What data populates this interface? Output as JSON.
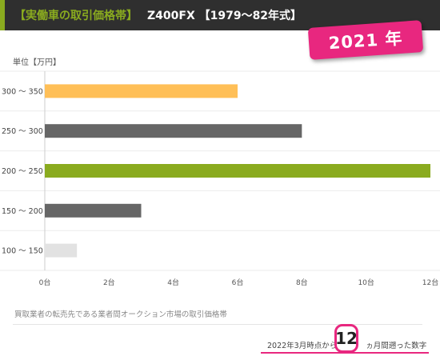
{
  "header": {
    "tag": "【実働車の取引価格帯】",
    "model": "Z400FX 【1979～82年式】"
  },
  "badge": {
    "year": "2021 年"
  },
  "unit_label": "単位【万円】",
  "note": "買取業者の転売先である業者間オークション市場の取引価格帯",
  "since": {
    "prefix": "2022年3月時点から",
    "months": "12",
    "suffix": "ヵ月間遡った数字"
  },
  "colors": {
    "accent_green": "#8aab1f",
    "accent_pink": "#e8277f",
    "orange": "#ffbf57",
    "gray": "#666666",
    "light_gray": "#e2e2e2"
  },
  "chart_data": {
    "type": "bar",
    "orientation": "horizontal",
    "categories": [
      "300 ～ 350",
      "250 ～ 300",
      "200 ～ 250",
      "150 ～ 200",
      "100 ～ 150"
    ],
    "values": [
      6,
      8,
      12,
      3,
      1
    ],
    "bar_colors": [
      "#ffbf57",
      "#666666",
      "#8aab1f",
      "#666666",
      "#e2e2e2"
    ],
    "xlim": [
      0,
      12
    ],
    "xticks": [
      0,
      2,
      4,
      6,
      8,
      10,
      12
    ],
    "xtick_labels": [
      "0台",
      "2台",
      "4台",
      "6台",
      "8台",
      "10台",
      "12台"
    ],
    "grid": true
  }
}
